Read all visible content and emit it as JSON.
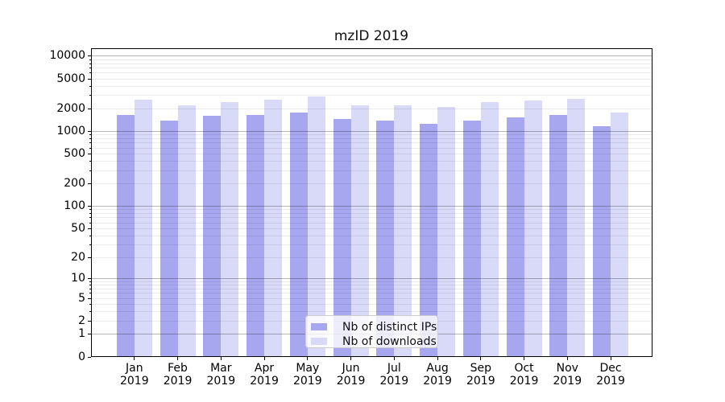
{
  "title": "mzID 2019",
  "chart_data": {
    "type": "bar",
    "title": "mzID 2019",
    "categories": [
      "Jan",
      "Feb",
      "Mar",
      "Apr",
      "May",
      "Jun",
      "Jul",
      "Aug",
      "Sep",
      "Oct",
      "Nov",
      "Dec"
    ],
    "category_year": "2019",
    "series": [
      {
        "name": "Nb of distinct IPs",
        "color": "#a7a7f0",
        "values": [
          1650,
          1400,
          1600,
          1650,
          1800,
          1450,
          1400,
          1250,
          1400,
          1550,
          1650,
          1180
        ]
      },
      {
        "name": "Nb of downloads",
        "color": "#d9d9f8",
        "values": [
          2650,
          2200,
          2450,
          2650,
          2900,
          2250,
          2250,
          2100,
          2450,
          2550,
          2700,
          1780
        ]
      }
    ],
    "y_axis": {
      "scale": "log1p",
      "ticks": [
        0,
        1,
        2,
        5,
        10,
        20,
        50,
        100,
        200,
        500,
        1000,
        2000,
        5000,
        10000
      ],
      "range": [
        0,
        12800
      ],
      "major_gridline_values": [
        1,
        10,
        100,
        1000,
        10000
      ]
    },
    "grid": {
      "on": true,
      "major_color": "rgba(0,0,0,0.28)",
      "minor_color": "rgba(0,0,0,0.08)"
    },
    "legend": {
      "position": "lower center",
      "entries": [
        "Nb of distinct IPs",
        "Nb of downloads"
      ]
    }
  }
}
